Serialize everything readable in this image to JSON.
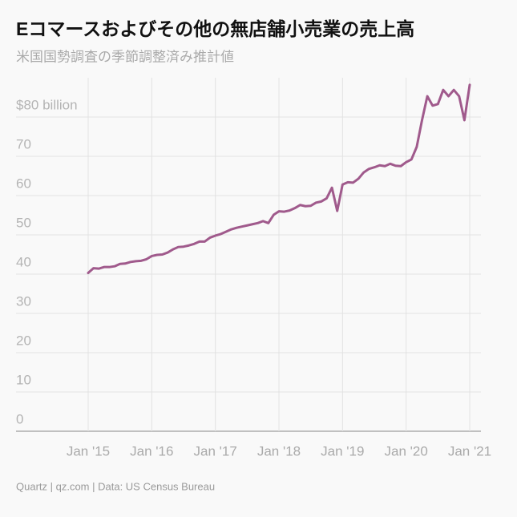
{
  "chart_data": {
    "type": "line",
    "title": "Eコマースおよびその他の無店舗小売業の売上高",
    "subtitle": "米国国勢調査の季節調整済み推計値",
    "source": "Quartz | qz.com | Data: US Census Bureau",
    "categories": [
      "Jan '15",
      null,
      null,
      null,
      null,
      null,
      null,
      null,
      null,
      null,
      null,
      null,
      "Jan '16",
      null,
      null,
      null,
      null,
      null,
      null,
      null,
      null,
      null,
      null,
      null,
      "Jan '17",
      null,
      null,
      null,
      null,
      null,
      null,
      null,
      null,
      null,
      null,
      null,
      "Jan '18",
      null,
      null,
      null,
      null,
      null,
      null,
      null,
      null,
      null,
      null,
      null,
      "Jan '19",
      null,
      null,
      null,
      null,
      null,
      null,
      null,
      null,
      null,
      null,
      null,
      "Jan '20",
      null,
      null,
      null,
      null,
      null,
      null,
      null,
      null,
      null,
      null,
      null,
      "Jan '21"
    ],
    "values": [
      40.3,
      41.5,
      41.4,
      41.8,
      41.8,
      42.0,
      42.6,
      42.7,
      43.1,
      43.3,
      43.4,
      43.8,
      44.6,
      44.9,
      45.0,
      45.5,
      46.3,
      46.9,
      47.0,
      47.3,
      47.7,
      48.3,
      48.3,
      49.3,
      49.8,
      50.2,
      50.8,
      51.4,
      51.8,
      52.1,
      52.4,
      52.7,
      53.0,
      53.5,
      53.0,
      55.1,
      56.0,
      55.9,
      56.2,
      56.8,
      57.6,
      57.3,
      57.4,
      58.2,
      58.5,
      59.3,
      62.0,
      56.1,
      62.8,
      63.4,
      63.3,
      64.3,
      65.9,
      66.8,
      67.2,
      67.7,
      67.5,
      68.1,
      67.6,
      67.5,
      68.5,
      69.2,
      72.4,
      79.2,
      85.3,
      82.9,
      83.3,
      86.9,
      85.3,
      86.9,
      85.3,
      79.2,
      88.2
    ],
    "color": "#a05a8c",
    "ylim": [
      0,
      90
    ],
    "yticks": [
      0,
      10,
      20,
      30,
      40,
      50,
      60,
      70,
      {
        "value": 80,
        "label": "$80 billion"
      }
    ],
    "grid": true
  }
}
